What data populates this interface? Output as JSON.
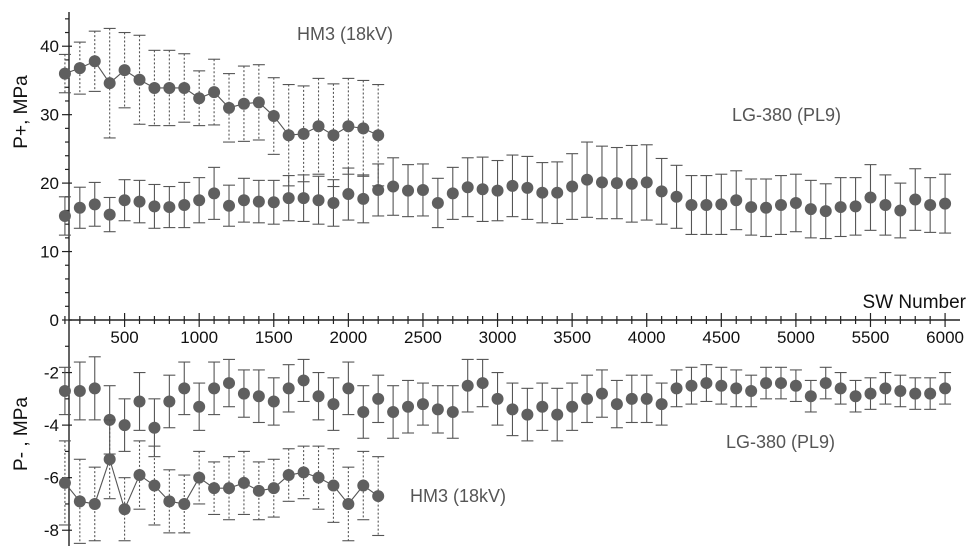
{
  "chart_data": {
    "type": "scatter",
    "xaxis_title": "SW Number",
    "upper_ylabel": "P+, MPa",
    "lower_ylabel": "P- , MPa",
    "xlim": [
      0,
      6100
    ],
    "upper_ylim": [
      0,
      45
    ],
    "lower_ylim": [
      -8.6,
      0
    ],
    "x_ticks": [
      500,
      1000,
      1500,
      2000,
      2500,
      3000,
      3500,
      4000,
      4500,
      5000,
      5500,
      6000
    ],
    "x_tick_labels": [
      "500",
      "1000",
      "1500",
      "2000",
      "2500",
      "3000",
      "3500",
      "4000",
      "4500",
      "5000",
      "5500",
      "6000"
    ],
    "upper_y_ticks": [
      0,
      10,
      20,
      30,
      40
    ],
    "upper_y_tick_labels": [
      "0",
      "10",
      "20",
      "30",
      "40"
    ],
    "lower_y_ticks": [
      -2,
      -4,
      -6,
      -8
    ],
    "lower_y_tick_labels": [
      "-2",
      "-4",
      "-6",
      "-8"
    ],
    "annotations": {
      "upper_hm3": "HM3 (18kV)",
      "upper_lg": "LG-380 (PL9)",
      "lower_lg": "LG-380 (PL9)",
      "lower_hm3": "HM3 (18kV)"
    },
    "series": [
      {
        "panel": "upper",
        "style": "solid",
        "connected": false,
        "x": [
          100,
          200,
          300,
          400,
          500,
          600,
          700,
          800,
          900,
          1000,
          1100,
          1200,
          1300,
          1400,
          1500,
          1600,
          1700,
          1800,
          1900,
          2000,
          2100,
          2200,
          2300,
          2400,
          2500,
          2600,
          2700,
          2800,
          2900,
          3000,
          3100,
          3200,
          3300,
          3400,
          3500,
          3600,
          3700,
          3800,
          3900,
          4000,
          4100,
          4200,
          4300,
          4400,
          4500,
          4600,
          4700,
          4800,
          4900,
          5000,
          5100,
          5200,
          5300,
          5400,
          5500,
          5600,
          5700,
          5800,
          5900,
          6000
        ],
        "y": [
          15.2,
          16.4,
          16.9,
          15.4,
          17.5,
          17.3,
          16.6,
          16.5,
          16.8,
          17.5,
          18.5,
          16.7,
          17.5,
          17.3,
          17.2,
          17.8,
          17.8,
          17.5,
          17.1,
          18.4,
          17.7,
          19.0,
          19.5,
          18.9,
          19.0,
          17.1,
          18.5,
          19.4,
          19.1,
          18.9,
          19.6,
          19.3,
          18.6,
          18.6,
          19.5,
          20.5,
          20.1,
          20.0,
          19.9,
          20.1,
          18.8,
          18.0,
          16.8,
          16.8,
          16.9,
          17.5,
          16.5,
          16.4,
          16.8,
          17.1,
          16.2,
          15.9,
          16.5,
          16.6,
          17.9,
          16.8,
          16.0,
          17.6,
          16.8,
          17.0
        ],
        "err": [
          2.8,
          3.0,
          3.2,
          2.5,
          3.0,
          3.1,
          3.2,
          3.0,
          3.3,
          3.3,
          3.8,
          3.0,
          3.2,
          3.1,
          3.2,
          3.3,
          3.4,
          3.5,
          3.4,
          3.8,
          3.5,
          3.8,
          4.2,
          3.8,
          3.8,
          3.6,
          3.8,
          4.3,
          4.7,
          4.4,
          4.5,
          4.6,
          4.4,
          4.5,
          4.8,
          5.5,
          5.3,
          5.2,
          5.6,
          5.5,
          4.8,
          4.6,
          4.3,
          4.3,
          4.4,
          4.3,
          4.1,
          4.2,
          4.3,
          4.2,
          4.2,
          4.0,
          4.3,
          4.2,
          4.8,
          4.4,
          4.0,
          4.5,
          4.0,
          4.3
        ]
      },
      {
        "panel": "upper",
        "style": "dashed",
        "connected": true,
        "x": [
          100,
          200,
          300,
          400,
          500,
          600,
          700,
          800,
          900,
          1000,
          1100,
          1200,
          1300,
          1400,
          1500,
          1600,
          1700,
          1800,
          1900,
          2000,
          2100,
          2200
        ],
        "y": [
          36.0,
          36.8,
          37.8,
          34.6,
          36.5,
          35.1,
          33.9,
          33.9,
          33.9,
          32.4,
          33.3,
          31.0,
          31.6,
          31.8,
          29.8,
          27.0,
          27.2,
          28.3,
          27.0,
          28.3,
          28.0,
          27.0
        ],
        "err": [
          2.8,
          3.8,
          4.4,
          8.0,
          5.5,
          6.5,
          5.5,
          5.5,
          5.0,
          4.0,
          4.8,
          5.0,
          5.5,
          5.5,
          5.6,
          7.4,
          7.0,
          7.0,
          7.5,
          7.0,
          7.0,
          7.4
        ]
      },
      {
        "panel": "lower",
        "style": "solid",
        "connected": false,
        "x": [
          100,
          200,
          300,
          400,
          500,
          600,
          700,
          800,
          900,
          1000,
          1100,
          1200,
          1300,
          1400,
          1500,
          1600,
          1700,
          1800,
          1900,
          2000,
          2100,
          2200,
          2300,
          2400,
          2500,
          2600,
          2700,
          2800,
          2900,
          3000,
          3100,
          3200,
          3300,
          3400,
          3500,
          3600,
          3700,
          3800,
          3900,
          4000,
          4100,
          4200,
          4300,
          4400,
          4500,
          4600,
          4700,
          4800,
          4900,
          5000,
          5100,
          5200,
          5300,
          5400,
          5500,
          5600,
          5700,
          5800,
          5900,
          6000
        ],
        "y": [
          -2.7,
          -2.7,
          -2.6,
          -3.8,
          -4.0,
          -3.1,
          -4.1,
          -3.1,
          -2.6,
          -3.3,
          -2.6,
          -2.4,
          -2.8,
          -2.9,
          -3.1,
          -2.6,
          -2.3,
          -2.9,
          -3.2,
          -2.6,
          -3.5,
          -3.0,
          -3.5,
          -3.3,
          -3.2,
          -3.4,
          -3.5,
          -2.5,
          -2.4,
          -3.0,
          -3.4,
          -3.6,
          -3.3,
          -3.6,
          -3.3,
          -3.0,
          -2.8,
          -3.2,
          -3.0,
          -3.0,
          -3.2,
          -2.6,
          -2.5,
          -2.4,
          -2.5,
          -2.6,
          -2.7,
          -2.4,
          -2.4,
          -2.5,
          -2.9,
          -2.4,
          -2.6,
          -2.9,
          -2.8,
          -2.6,
          -2.7,
          -2.8,
          -2.8,
          -2.6
        ],
        "err": [
          0.9,
          1.1,
          1.2,
          1.3,
          1.0,
          1.1,
          1.1,
          1.0,
          1.0,
          0.9,
          1.0,
          0.9,
          0.9,
          1.0,
          0.9,
          0.9,
          0.8,
          0.9,
          1.0,
          1.0,
          1.0,
          0.9,
          1.0,
          1.0,
          0.8,
          0.9,
          1.0,
          1.0,
          0.9,
          1.0,
          1.0,
          1.0,
          0.9,
          1.0,
          0.9,
          0.9,
          0.9,
          0.9,
          0.9,
          0.9,
          0.8,
          0.7,
          0.7,
          0.7,
          0.7,
          0.7,
          0.6,
          0.6,
          0.6,
          0.6,
          0.6,
          0.6,
          0.6,
          0.6,
          0.6,
          0.6,
          0.6,
          0.6,
          0.6,
          0.6
        ]
      },
      {
        "panel": "lower",
        "style": "dashed",
        "connected": true,
        "x": [
          100,
          200,
          300,
          400,
          500,
          600,
          700,
          800,
          900,
          1000,
          1100,
          1200,
          1300,
          1400,
          1500,
          1600,
          1700,
          1800,
          1900,
          2000,
          2100,
          2200
        ],
        "y": [
          -6.2,
          -6.9,
          -7.0,
          -5.3,
          -7.2,
          -5.9,
          -6.3,
          -6.9,
          -7.0,
          -6.0,
          -6.4,
          -6.4,
          -6.2,
          -6.5,
          -6.4,
          -5.9,
          -5.8,
          -6.0,
          -6.3,
          -7.0,
          -6.3,
          -6.7
        ],
        "err": [
          1.6,
          1.6,
          1.4,
          1.5,
          1.2,
          1.3,
          1.5,
          1.2,
          1.1,
          1.0,
          1.0,
          1.2,
          1.2,
          1.1,
          1.1,
          1.0,
          1.0,
          1.2,
          1.4,
          1.4,
          1.3,
          1.5
        ]
      }
    ]
  }
}
